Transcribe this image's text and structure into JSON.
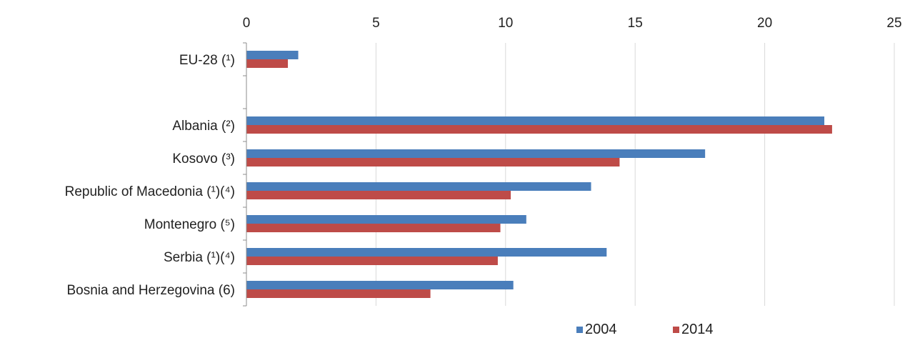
{
  "chart_data": {
    "type": "bar",
    "orientation": "horizontal",
    "categories": [
      "EU-28 (¹)",
      "",
      "Albania (²)",
      "Kosovo (³)",
      "Republic of Macedonia (¹)(⁴)",
      "Montenegro (⁵)",
      "Serbia (¹)(⁴)",
      "Bosnia and Herzegovina (6)"
    ],
    "series": [
      {
        "name": "2004",
        "color": "#4a7ebb",
        "values": [
          2.0,
          null,
          22.3,
          17.7,
          13.3,
          10.8,
          13.9,
          10.3
        ]
      },
      {
        "name": "2014",
        "color": "#be4b48",
        "values": [
          1.6,
          null,
          22.6,
          14.4,
          10.2,
          9.8,
          9.7,
          7.1
        ]
      }
    ],
    "xlim": [
      0,
      25
    ],
    "xticks": [
      "0",
      "5",
      "10",
      "15",
      "20",
      "25"
    ],
    "x_axis_position": "top",
    "grid": true,
    "legend_position": "bottom-right"
  }
}
